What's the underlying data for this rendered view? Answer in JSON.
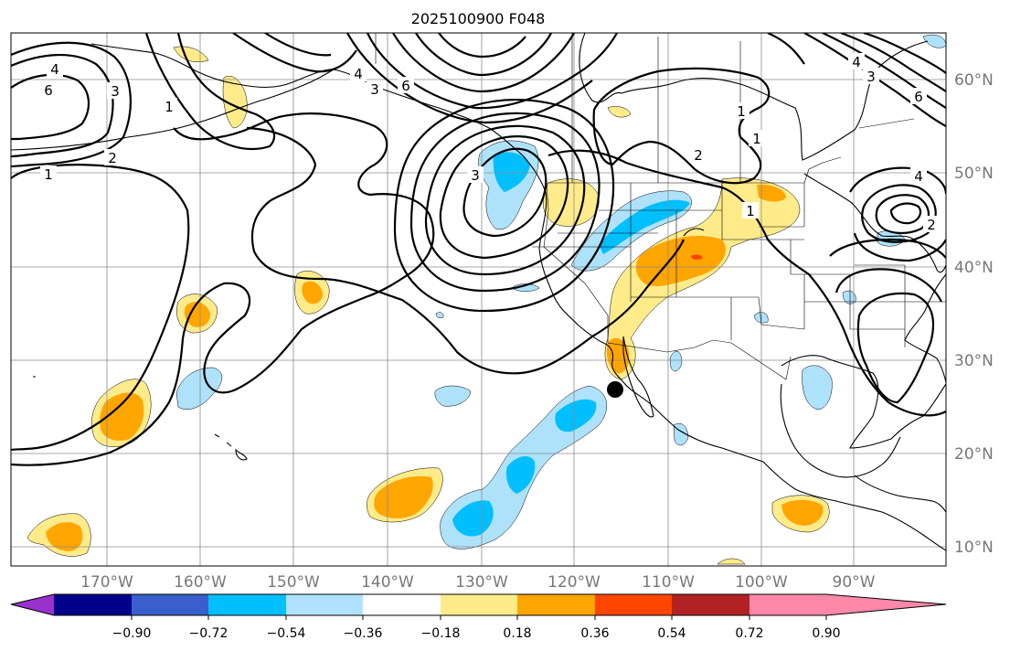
{
  "title": "2025100900 F048",
  "latitude_labels": [
    "60°N",
    "50°N",
    "40°N",
    "30°N",
    "20°N",
    "10°N"
  ],
  "longitude_labels": [
    "170°W",
    "160°W",
    "150°W",
    "140°W",
    "130°W",
    "120°W",
    "110°W",
    "100°W",
    "90°W"
  ],
  "colorbar": {
    "tick_labels": [
      "−0.90",
      "−0.72",
      "−0.54",
      "−0.36",
      "−0.18",
      "0.18",
      "0.36",
      "0.54",
      "0.72",
      "0.90"
    ],
    "colors": [
      "#9932cc",
      "#00008b",
      "#3a5fcd",
      "#00bfff",
      "#b0e2ff",
      "#ffffff",
      "#ffeb8a",
      "#ffa500",
      "#ff4500",
      "#b22222",
      "#ff88aa"
    ]
  },
  "contour_labels": {
    "l1": "4",
    "l2": "6",
    "l3": "3",
    "l4": "2",
    "l5": "1",
    "l6": "1",
    "l7": "4",
    "l8": "3",
    "l9": "6",
    "l10": "3",
    "l11": "1",
    "l12": "1",
    "l13": "2",
    "l14": "1",
    "l15": "4",
    "l16": "6",
    "l17": "3",
    "l18": "4",
    "l19": "2"
  }
}
